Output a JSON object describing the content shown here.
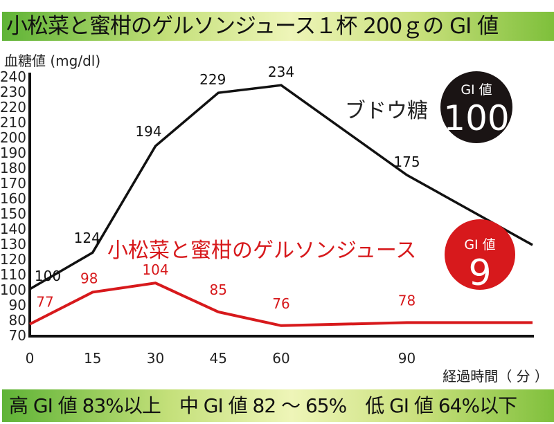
{
  "title": "小松菜と蜜柑のゲルソンジュース１杯 200ｇの GI 値",
  "footer": "高 GI 値 83%以上　中 GI 値 82 ～ 65%　低 GI 値 64%以下",
  "badges": {
    "glucose": {
      "label": "GI 値",
      "value": "100",
      "color": "#1a1414"
    },
    "juice": {
      "label": "GI 値",
      "value": "9",
      "color": "#d7191c"
    }
  },
  "chart_data": {
    "type": "line",
    "title": "小松菜と蜜柑のゲルソンジュース１杯 200ｇの GI 値",
    "xlabel": "経過時間（ 分 ）",
    "ylabel": "血糖値 (mg/dl)",
    "xlim": [
      0,
      120
    ],
    "ylim": [
      70,
      240
    ],
    "yticks": [
      70,
      80,
      90,
      100,
      110,
      120,
      130,
      140,
      150,
      160,
      170,
      180,
      190,
      200,
      210,
      220,
      230,
      240
    ],
    "xticks": [
      0,
      15,
      30,
      45,
      60,
      90
    ],
    "x": [
      0,
      15,
      30,
      45,
      60,
      90,
      120
    ],
    "series": [
      {
        "name": "ブドウ糖",
        "color": "#111111",
        "values": [
          100,
          124,
          194,
          229,
          234,
          175,
          129
        ],
        "labels": [
          "100",
          "124",
          "194",
          "229",
          "234",
          "175",
          ""
        ]
      },
      {
        "name": "小松菜と蜜柑のゲルソンジュース",
        "color": "#d7191c",
        "values": [
          77,
          98,
          104,
          85,
          76,
          78,
          78
        ],
        "labels": [
          "77",
          "98",
          "104",
          "85",
          "76",
          "78",
          ""
        ]
      }
    ]
  }
}
